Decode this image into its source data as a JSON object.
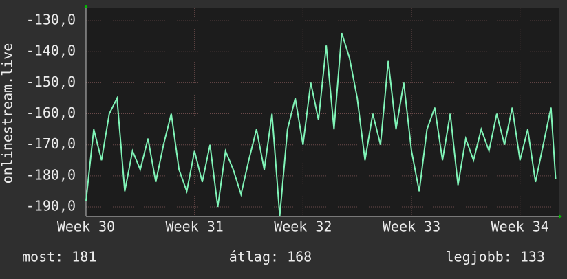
{
  "chart_data": {
    "type": "line",
    "y_label": "onlinestream.live",
    "x": [
      0,
      0.5,
      1,
      1.5,
      2,
      2.5,
      3,
      3.5,
      4,
      4.5,
      5,
      5.5,
      6,
      6.5,
      7,
      7.5,
      8,
      8.5,
      9,
      9.5,
      10,
      10.5,
      11,
      11.5,
      12,
      12.5,
      13,
      13.5,
      14,
      14.5,
      15,
      15.5,
      16,
      16.5,
      17,
      17.5,
      18,
      18.5,
      19,
      19.5,
      20,
      20.5,
      21,
      21.5,
      22,
      22.5,
      23,
      23.5,
      24,
      24.5,
      25,
      25.5,
      26,
      26.5,
      27,
      27.5,
      28,
      28.5,
      29,
      29.5,
      30,
      30.3
    ],
    "series": [
      {
        "color": "#80f5b8",
        "values": [
          -188,
          -165,
          -175,
          -160,
          -155,
          -185,
          -172,
          -178,
          -168,
          -182,
          -170,
          -160,
          -178,
          -185,
          -172,
          -182,
          -170,
          -190,
          -172,
          -178,
          -186,
          -175,
          -165,
          -178,
          -160,
          -193,
          -165,
          -155,
          -170,
          -150,
          -162,
          -138,
          -165,
          -134,
          -142,
          -155,
          -175,
          -160,
          -170,
          -143,
          -165,
          -150,
          -172,
          -185,
          -165,
          -158,
          -175,
          -160,
          -183,
          -168,
          -175,
          -165,
          -172,
          -160,
          -170,
          -158,
          -175,
          -165,
          -182,
          -170,
          -158,
          -181
        ]
      }
    ],
    "xlim": [
      0,
      30.5
    ],
    "xticks": [
      {
        "value": 0,
        "label": "Week 30"
      },
      {
        "value": 7,
        "label": "Week 31"
      },
      {
        "value": 14,
        "label": "Week 32"
      },
      {
        "value": 21,
        "label": "Week 33"
      },
      {
        "value": 28,
        "label": "Week 34"
      }
    ],
    "ylim": [
      -193.1,
      -126
    ],
    "yticks": [
      {
        "value": -190,
        "label": "-190,0"
      },
      {
        "value": -180,
        "label": "-180,0"
      },
      {
        "value": -170,
        "label": "-170,0"
      },
      {
        "value": -160,
        "label": "-160,0"
      },
      {
        "value": -150,
        "label": "-150,0"
      },
      {
        "value": -140,
        "label": "-140,0"
      },
      {
        "value": -130,
        "label": "-130,0"
      }
    ],
    "grid": true,
    "footer": [
      "most: 181",
      "átlag: 168",
      "legjobb: 133"
    ]
  }
}
